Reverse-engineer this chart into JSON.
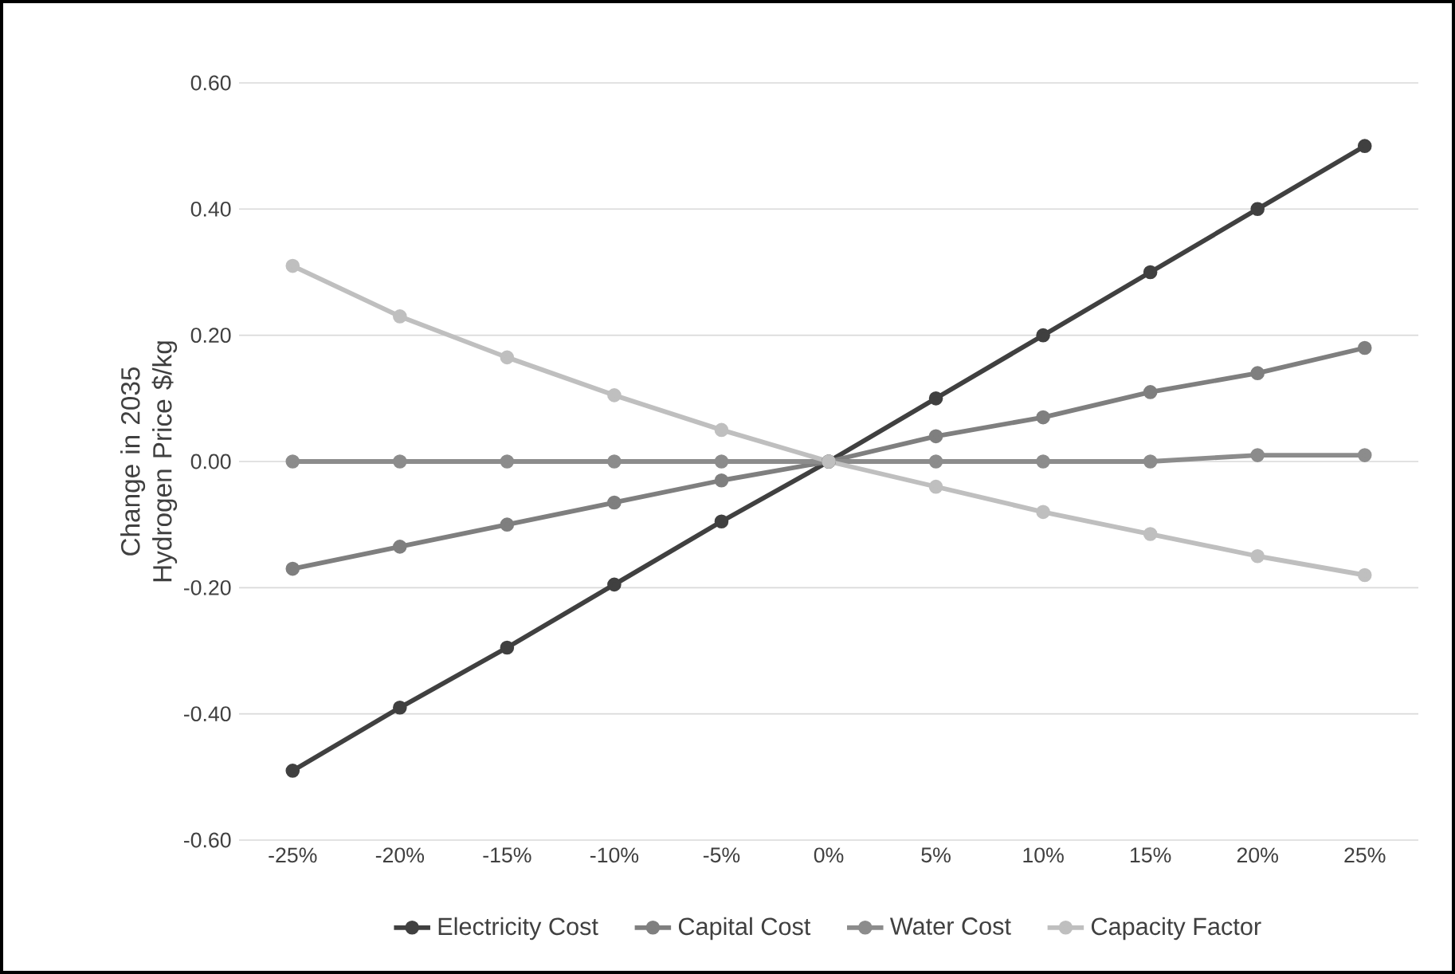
{
  "chart_data": {
    "type": "line",
    "ylabel": "Change in 2035 Hydrogen Price $/kg",
    "categories": [
      "-25%",
      "-20%",
      "-15%",
      "-10%",
      "-5%",
      "0%",
      "5%",
      "10%",
      "15%",
      "20%",
      "25%"
    ],
    "series": [
      {
        "name": "Electricity Cost",
        "color": "#404040",
        "values": [
          -0.49,
          -0.39,
          -0.295,
          -0.195,
          -0.095,
          0,
          0.1,
          0.2,
          0.3,
          0.4,
          0.5
        ]
      },
      {
        "name": "Capital Cost",
        "color": "#7f7f7f",
        "values": [
          -0.17,
          -0.135,
          -0.1,
          -0.065,
          -0.03,
          0,
          0.04,
          0.07,
          0.11,
          0.14,
          0.18
        ]
      },
      {
        "name": "Water Cost",
        "color": "#8c8c8c",
        "values": [
          0,
          0,
          0,
          0,
          0,
          0,
          0,
          0,
          0,
          0.01,
          0.01
        ]
      },
      {
        "name": "Capacity Factor",
        "color": "#bfbfbf",
        "values": [
          0.31,
          0.23,
          0.165,
          0.105,
          0.05,
          0,
          -0.04,
          -0.08,
          -0.115,
          -0.15,
          -0.18
        ]
      }
    ],
    "ylim": [
      -0.6,
      0.6
    ],
    "yticks": [
      {
        "value": -0.6,
        "label": "-0.60"
      },
      {
        "value": -0.4,
        "label": "-0.40"
      },
      {
        "value": -0.2,
        "label": "-0.20"
      },
      {
        "value": 0,
        "label": "0.00"
      },
      {
        "value": 0.2,
        "label": "0.20"
      },
      {
        "value": 0.4,
        "label": "0.40"
      },
      {
        "value": 0.6,
        "label": "0.60"
      }
    ],
    "grid": "y",
    "legend": "bottom",
    "marker": "circle",
    "line_style": "solid"
  }
}
